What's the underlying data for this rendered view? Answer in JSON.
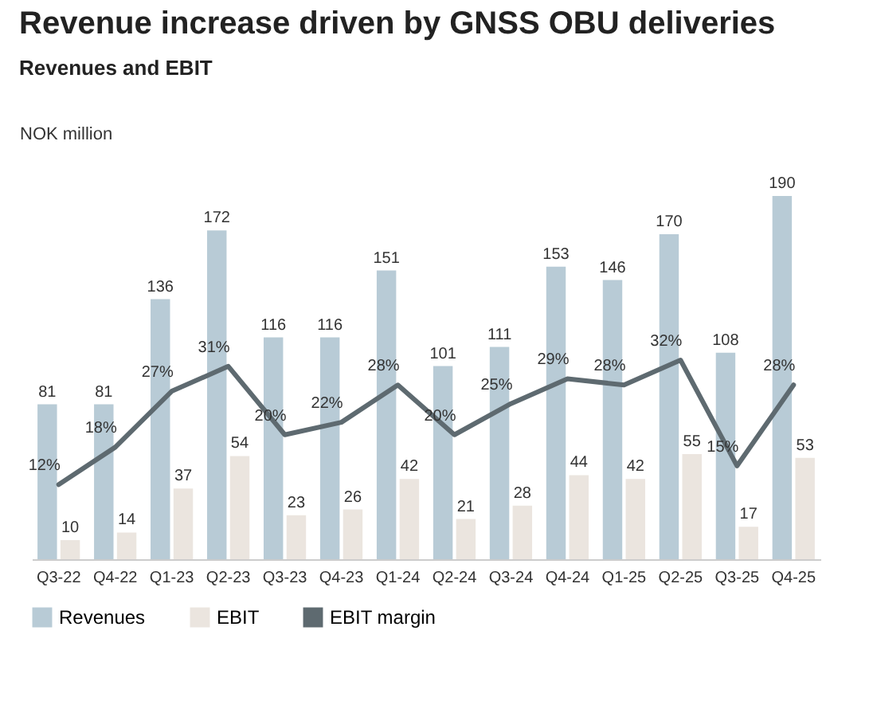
{
  "chart_data": {
    "type": "bar",
    "title": "Revenue increase driven by GNSS OBU deliveries",
    "subtitle": "Revenues and EBIT",
    "ylabel": "NOK million",
    "categories": [
      "Q3-22",
      "Q4-22",
      "Q1-23",
      "Q2-23",
      "Q3-23",
      "Q4-23",
      "Q1-24",
      "Q2-24",
      "Q3-24",
      "Q4-24",
      "Q1-25",
      "Q2-25",
      "Q3-25",
      "Q4-25"
    ],
    "series": [
      {
        "name": "Revenues",
        "color": "#b8cbd6",
        "values": [
          81,
          81,
          136,
          172,
          116,
          116,
          151,
          101,
          111,
          153,
          146,
          170,
          108,
          190
        ]
      },
      {
        "name": "EBIT",
        "color": "#ebe5df",
        "values": [
          10,
          14,
          37,
          54,
          23,
          26,
          42,
          21,
          28,
          44,
          42,
          55,
          17,
          53
        ]
      },
      {
        "name": "EBIT margin",
        "type": "line",
        "axis": "y2",
        "color": "#5e6a70",
        "values": [
          12,
          18,
          27,
          31,
          20,
          22,
          28,
          20,
          25,
          29,
          28,
          32,
          15,
          28
        ],
        "value_labels": [
          "12%",
          "18%",
          "27%",
          "31%",
          "20%",
          "22%",
          "28%",
          "20%",
          "25%",
          "29%",
          "28%",
          "32%",
          "15%",
          "28%"
        ]
      }
    ],
    "data_labels": true,
    "tick_labels": "x",
    "legend": "bottom",
    "grid": false
  }
}
